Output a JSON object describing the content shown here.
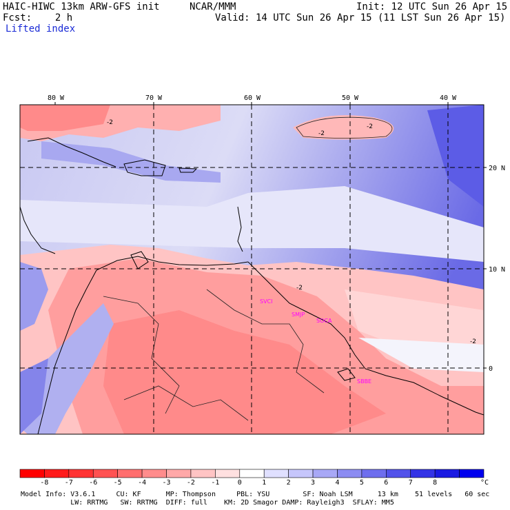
{
  "header": {
    "title": "HAIC-HIWC 13km ARW-GFS init",
    "org": "NCAR/MMM",
    "init": "Init: 12 UTC Sun 26 Apr 15",
    "fcst": "Fcst:    2 h",
    "valid": "Valid: 14 UTC Sun 26 Apr 15 (11 LST Sun 26 Apr 15)",
    "field": "Lifted index"
  },
  "map": {
    "lon_labels": [
      "80 W",
      "70 W",
      "60 W",
      "50 W",
      "40 W"
    ],
    "lat_labels": [
      "20 N",
      "10 N",
      "0"
    ],
    "stations": [
      "SVCI",
      "SMJP",
      "SOCA",
      "SBBE"
    ],
    "contour_label": "-2"
  },
  "colorbar": {
    "labels": [
      "-8",
      "-7",
      "-6",
      "-5",
      "-4",
      "-3",
      "-2",
      "-1",
      "0",
      "1",
      "2",
      "3",
      "4",
      "5",
      "6",
      "7",
      "8"
    ],
    "unit": "°C",
    "colors": [
      "#ff1a1a",
      "#ff3333",
      "#ff5252",
      "#ff6e6e",
      "#ff8c8c",
      "#ffa8a8",
      "#ffc4c4",
      "#ffe0e0",
      "#ffffff",
      "#e0e0ff",
      "#c6c6fb",
      "#a8a8f6",
      "#8c8cf2",
      "#6e6eee",
      "#5252ea",
      "#3333e6",
      "#1a1ae2"
    ]
  },
  "footer": {
    "line1": "Model Info: V3.6.1     CU: KF      MP: Thompson     PBL: YSU        SF: Noah LSM      13 km    51 levels   60 sec",
    "line2": "            LW: RRTMG   SW: RRTMG  DIFF: full    KM: 2D Smagor DAMP: Rayleigh3  SFLAY: MM5"
  }
}
